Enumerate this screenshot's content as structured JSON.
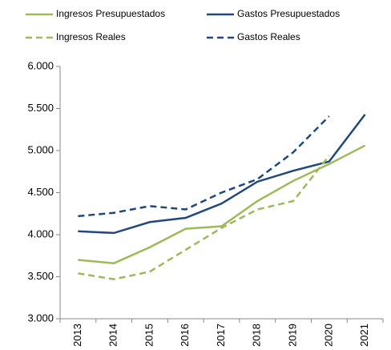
{
  "chart_data": {
    "type": "line",
    "categories": [
      "2013",
      "2014",
      "2015",
      "2016",
      "2017",
      "2018",
      "2019",
      "2020",
      "2021"
    ],
    "series": [
      {
        "name": "Ingresos Presupuestados",
        "color": "#9bbb59",
        "dash": false,
        "values": [
          3700,
          3660,
          3850,
          4070,
          4100,
          4400,
          4640,
          4840,
          5060
        ]
      },
      {
        "name": "Gastos Presupuestados",
        "color": "#1f497d",
        "dash": false,
        "values": [
          4040,
          4020,
          4150,
          4200,
          4370,
          4630,
          4760,
          4870,
          5430
        ]
      },
      {
        "name": "Ingresos Reales",
        "color": "#9bbb59",
        "dash": true,
        "values": [
          3540,
          3470,
          3560,
          3820,
          4080,
          4300,
          4400,
          4940,
          null
        ]
      },
      {
        "name": "Gastos Reales",
        "color": "#1f497d",
        "dash": true,
        "values": [
          4220,
          4260,
          4340,
          4300,
          4500,
          4660,
          4980,
          5410,
          null
        ]
      }
    ],
    "ylim": [
      3000,
      6000
    ],
    "yticks": [
      {
        "value": 3000,
        "label": "3.000"
      },
      {
        "value": 3500,
        "label": "3.500"
      },
      {
        "value": 4000,
        "label": "4.000"
      },
      {
        "value": 4500,
        "label": "4.500"
      },
      {
        "value": 5000,
        "label": "5.000"
      },
      {
        "value": 5500,
        "label": "5.500"
      },
      {
        "value": 6000,
        "label": "6.000"
      }
    ],
    "grid": false
  }
}
